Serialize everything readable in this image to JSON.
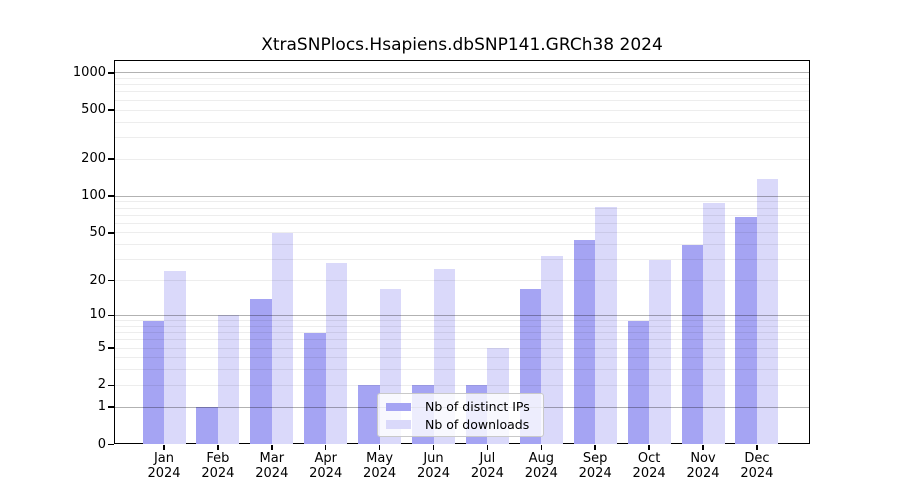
{
  "title": "XtraSNPlocs.Hsapiens.dbSNP141.GRCh38 2024",
  "chart_data": {
    "type": "bar",
    "title": "XtraSNPlocs.Hsapiens.dbSNP141.GRCh38 2024",
    "months": [
      "Jan",
      "Feb",
      "Mar",
      "Apr",
      "May",
      "Jun",
      "Jul",
      "Aug",
      "Sep",
      "Oct",
      "Nov",
      "Dec"
    ],
    "year": "2024",
    "series": [
      {
        "name": "Nb of distinct IPs",
        "color": "#a5a4f3",
        "values": [
          9,
          1,
          14,
          7,
          2,
          2,
          2,
          17,
          44,
          9,
          40,
          68
        ]
      },
      {
        "name": "Nb of downloads",
        "color": "#dad9fa",
        "values": [
          24,
          10,
          50,
          28,
          17,
          25,
          5,
          32,
          81,
          30,
          88,
          138
        ]
      }
    ],
    "yscale": "log1p",
    "yticks": [
      0,
      1,
      2,
      5,
      10,
      20,
      50,
      100,
      200,
      500,
      1000
    ],
    "ylim": [
      0,
      1255
    ],
    "xlabel": "",
    "ylabel": "",
    "grid": true,
    "legend_position": "inside-bottom-center"
  }
}
